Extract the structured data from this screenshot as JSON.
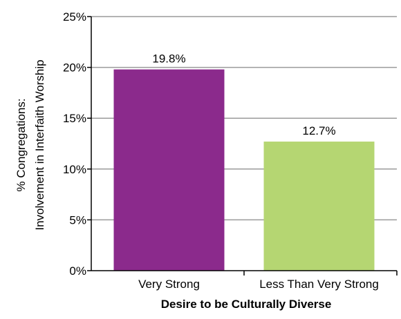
{
  "chart_data": {
    "type": "bar",
    "categories": [
      "Very Strong",
      "Less Than Very Strong"
    ],
    "values": [
      19.8,
      12.7
    ],
    "data_labels": [
      "19.8%",
      "12.7%"
    ],
    "bar_colors": [
      "#8b2a8c",
      "#b5d672"
    ],
    "xlabel": "Desire to be Culturally Diverse",
    "ylabel_lines": [
      "% Congregations:",
      "Involvement in Interfaith Worship"
    ],
    "ylim": [
      0,
      25
    ],
    "yticks": [
      0,
      5,
      10,
      15,
      20,
      25
    ],
    "ytick_labels": [
      "0%",
      "5%",
      "10%",
      "15%",
      "20%",
      "25%"
    ],
    "grid": true,
    "grid_color": "#9a9a9a",
    "axis_color": "#000000"
  }
}
